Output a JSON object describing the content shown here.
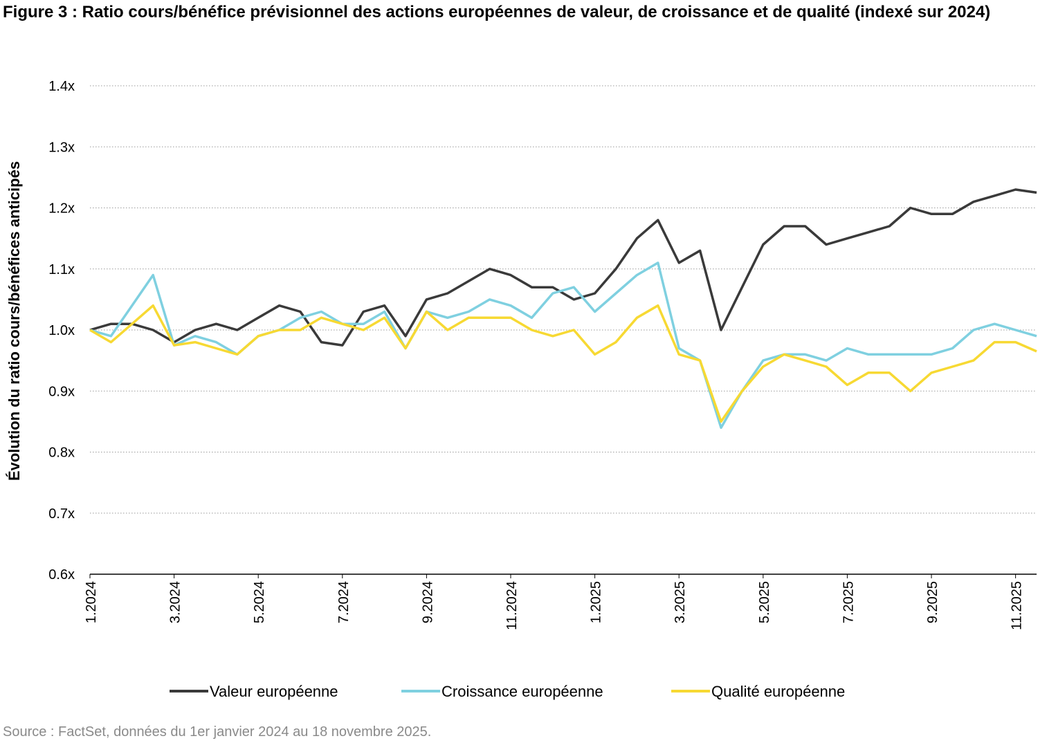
{
  "chart_data": {
    "type": "line",
    "title": "Figure 3 : Ratio cours/bénéfice prévisionnel des actions européennes de valeur, de croissance et de qualité (indexé sur 2024)",
    "y_label": "Évolution du ratio cours/bénéfices anticipés",
    "source": "Source : FactSet, données du 1er janvier 2024 au 18 novembre 2025.",
    "x": [
      0,
      0.5,
      1,
      1.5,
      2,
      2.5,
      3,
      3.5,
      4,
      4.5,
      5,
      5.5,
      6,
      6.5,
      7,
      7.5,
      8,
      8.5,
      9,
      9.5,
      10,
      10.5,
      11,
      11.5,
      12,
      12.5,
      13,
      13.5,
      14,
      14.5,
      15,
      15.5,
      16,
      16.5,
      17,
      17.5,
      18,
      18.5,
      19,
      19.5,
      20,
      20.5,
      21,
      21.5,
      22,
      22.5
    ],
    "xlim": [
      0,
      22.5
    ],
    "xticks": [
      {
        "value": 0,
        "label": "1.2024"
      },
      {
        "value": 2,
        "label": "3.2024"
      },
      {
        "value": 4,
        "label": "5.2024"
      },
      {
        "value": 6,
        "label": "7.2024"
      },
      {
        "value": 8,
        "label": "9.2024"
      },
      {
        "value": 10,
        "label": "11.2024"
      },
      {
        "value": 12,
        "label": "1.2025"
      },
      {
        "value": 14,
        "label": "3.2025"
      },
      {
        "value": 16,
        "label": "5.2025"
      },
      {
        "value": 18,
        "label": "7.2025"
      },
      {
        "value": 20,
        "label": "9.2025"
      },
      {
        "value": 22,
        "label": "11.2025"
      }
    ],
    "ylim": [
      0.6,
      1.4
    ],
    "yticks": [
      {
        "value": 0.6,
        "label": "0.6x"
      },
      {
        "value": 0.7,
        "label": "0.7x"
      },
      {
        "value": 0.8,
        "label": "0.8x"
      },
      {
        "value": 0.9,
        "label": "0.9x"
      },
      {
        "value": 1.0,
        "label": "1.0x"
      },
      {
        "value": 1.1,
        "label": "1.1x"
      },
      {
        "value": 1.2,
        "label": "1.2x"
      },
      {
        "value": 1.3,
        "label": "1.3x"
      },
      {
        "value": 1.4,
        "label": "1.4x"
      }
    ],
    "grid": true,
    "legend": "bottom",
    "series": [
      {
        "name": "Valeur européenne",
        "color": "#3a3a3a",
        "values": [
          1.0,
          1.01,
          1.01,
          1.0,
          0.98,
          1.0,
          1.01,
          1.0,
          1.02,
          1.04,
          1.03,
          0.98,
          0.975,
          1.03,
          1.04,
          0.99,
          1.05,
          1.06,
          1.08,
          1.1,
          1.09,
          1.07,
          1.07,
          1.05,
          1.06,
          1.1,
          1.15,
          1.18,
          1.11,
          1.13,
          1.0,
          1.07,
          1.14,
          1.17,
          1.17,
          1.14,
          1.15,
          1.16,
          1.17,
          1.2,
          1.19,
          1.19,
          1.21,
          1.22,
          1.23,
          1.225
        ]
      },
      {
        "name": "Croissance européenne",
        "color": "#7fd0e0",
        "values": [
          1.0,
          0.99,
          1.04,
          1.09,
          0.975,
          0.99,
          0.98,
          0.96,
          0.99,
          1.0,
          1.02,
          1.03,
          1.01,
          1.01,
          1.03,
          0.97,
          1.03,
          1.02,
          1.03,
          1.05,
          1.04,
          1.02,
          1.06,
          1.07,
          1.03,
          1.06,
          1.09,
          1.11,
          0.97,
          0.95,
          0.84,
          0.9,
          0.95,
          0.96,
          0.96,
          0.95,
          0.97,
          0.96,
          0.96,
          0.96,
          0.96,
          0.97,
          1.0,
          1.01,
          1.0,
          0.99
        ]
      },
      {
        "name": "Qualité européenne",
        "color": "#f7d933",
        "values": [
          1.0,
          0.98,
          1.01,
          1.04,
          0.975,
          0.98,
          0.97,
          0.96,
          0.99,
          1.0,
          1.0,
          1.02,
          1.01,
          1.0,
          1.02,
          0.97,
          1.03,
          1.0,
          1.02,
          1.02,
          1.02,
          1.0,
          0.99,
          1.0,
          0.96,
          0.98,
          1.02,
          1.04,
          0.96,
          0.95,
          0.85,
          0.9,
          0.94,
          0.96,
          0.95,
          0.94,
          0.91,
          0.93,
          0.93,
          0.9,
          0.93,
          0.94,
          0.95,
          0.98,
          0.98,
          0.965
        ]
      }
    ]
  }
}
